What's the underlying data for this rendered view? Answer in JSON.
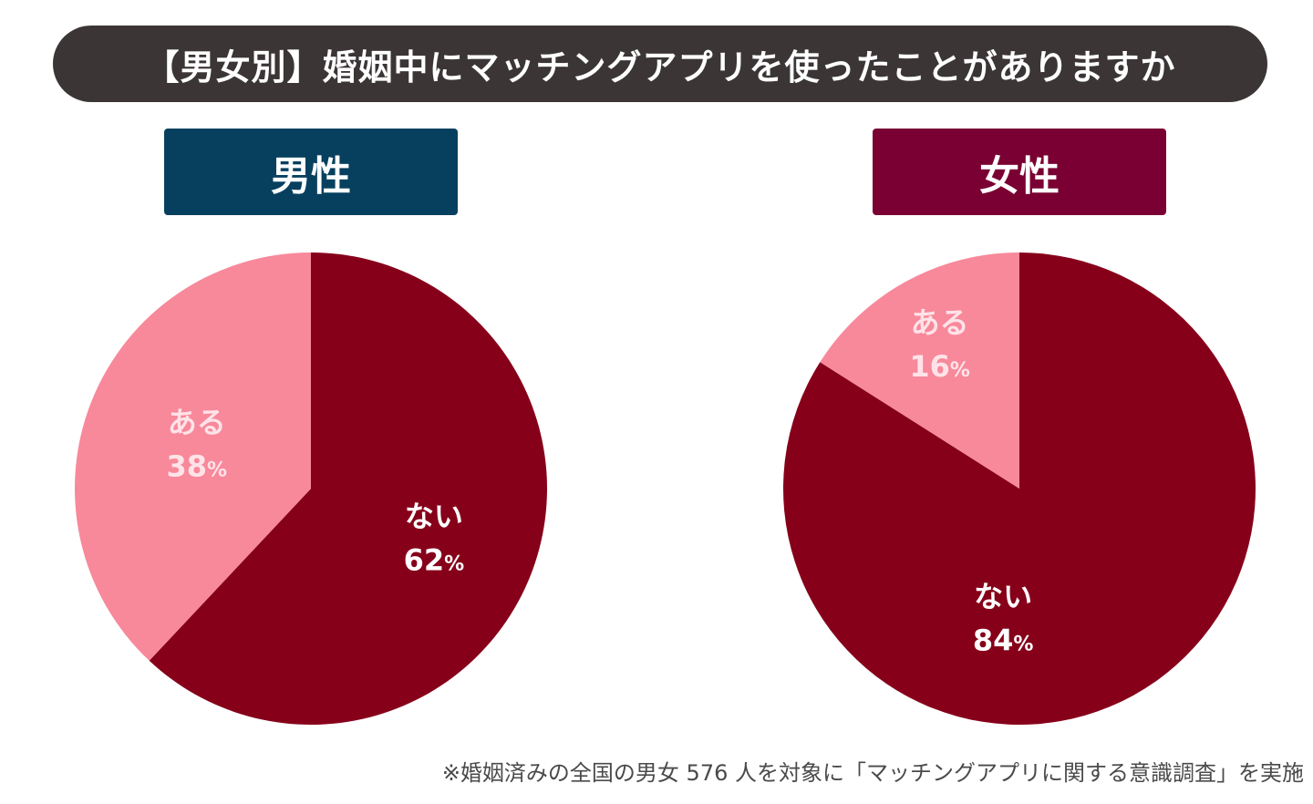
{
  "title": "【男女別】婚姻中にマッチングアプリを使ったことがありますか",
  "colors": {
    "title_bg": "#3b3536",
    "male_badge": "#07405f",
    "female_badge": "#7a0033",
    "yes_slice": "#f7899b",
    "no_slice": "#86001a",
    "yes_text": "#ffe3e8",
    "no_text": "#ffffff"
  },
  "chart_data": [
    {
      "type": "pie",
      "title": "男性",
      "slices": [
        {
          "label": "ない",
          "value": 62,
          "display": "62"
        },
        {
          "label": "ある",
          "value": 38,
          "display": "38"
        }
      ],
      "unit": "%"
    },
    {
      "type": "pie",
      "title": "女性",
      "slices": [
        {
          "label": "ない",
          "value": 84,
          "display": "84"
        },
        {
          "label": "ある",
          "value": 16,
          "display": "16"
        }
      ],
      "unit": "%"
    }
  ],
  "footnote": "※婚姻済みの全国の男女 576 人を対象に「マッチングアプリに関する意識調査」を実施"
}
